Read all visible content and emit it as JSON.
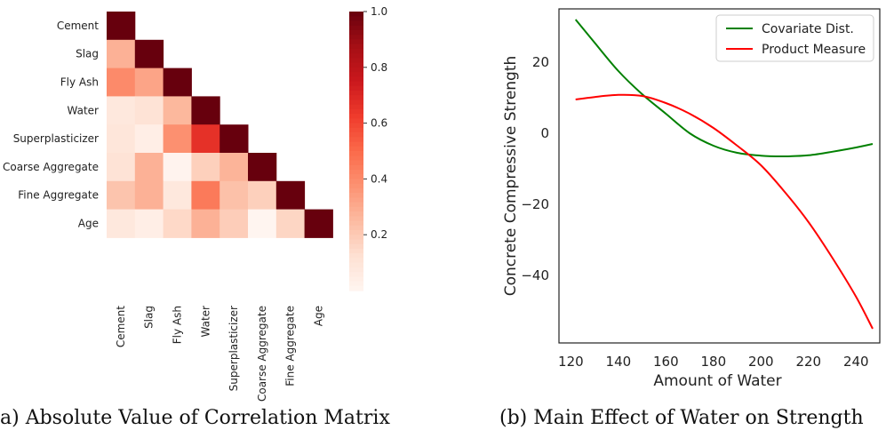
{
  "captions": {
    "a": "a) Absolute Value of Correlation Matrix",
    "b": "(b) Main Effect of Water on Strength"
  },
  "chart_data": [
    {
      "type": "heatmap",
      "labels": [
        "Cement",
        "Slag",
        "Fly Ash",
        "Water",
        "Superplasticizer",
        "Coarse Aggregate",
        "Fine Aggregate",
        "Age"
      ],
      "matrix": [
        [
          1.0
        ],
        [
          0.28,
          1.0
        ],
        [
          0.4,
          0.32,
          1.0
        ],
        [
          0.08,
          0.11,
          0.26,
          1.0
        ],
        [
          0.09,
          0.04,
          0.38,
          0.66,
          1.0
        ],
        [
          0.11,
          0.28,
          0.01,
          0.18,
          0.27,
          1.0
        ],
        [
          0.22,
          0.28,
          0.08,
          0.45,
          0.23,
          0.18,
          1.0
        ],
        [
          0.08,
          0.04,
          0.15,
          0.28,
          0.19,
          0.0,
          0.16,
          1.0
        ]
      ],
      "mask": "upper-triangle",
      "colormap": "Reds",
      "colorbar": {
        "range": [
          0,
          1.0
        ],
        "ticks": [
          "0.2",
          "0.4",
          "0.6",
          "0.8",
          "1.0"
        ],
        "tick_values": [
          0.2,
          0.4,
          0.6,
          0.8,
          1.0
        ]
      }
    },
    {
      "type": "line",
      "xlabel": "Amount of Water",
      "ylabel": "Concrete Compressive Strength",
      "xlim": [
        115,
        250
      ],
      "ylim": [
        -59,
        35
      ],
      "xticks": [
        120,
        140,
        160,
        180,
        200,
        220,
        240
      ],
      "yticks": [
        20,
        0,
        -20,
        -40
      ],
      "ytick_labels": [
        "20",
        "0",
        "−20",
        "−40"
      ],
      "legend_position": "top-right",
      "series": [
        {
          "name": "Covariate Dist.",
          "color": "#008000",
          "x": [
            122,
            130,
            140,
            150,
            160,
            170,
            180,
            190,
            200,
            210,
            220,
            230,
            240,
            247
          ],
          "y": [
            32,
            25.5,
            17.5,
            11,
            5.5,
            0,
            -3.5,
            -5.5,
            -6.3,
            -6.5,
            -6.2,
            -5.2,
            -4,
            -3
          ]
        },
        {
          "name": "Product Measure",
          "color": "#ff0000",
          "x": [
            122,
            130,
            140,
            150,
            160,
            170,
            180,
            190,
            200,
            210,
            220,
            230,
            240,
            247
          ],
          "y": [
            9.5,
            10.2,
            10.8,
            10.5,
            8.5,
            5.5,
            1.5,
            -3.5,
            -9,
            -16.5,
            -25,
            -35,
            -46,
            -55
          ]
        }
      ]
    }
  ]
}
